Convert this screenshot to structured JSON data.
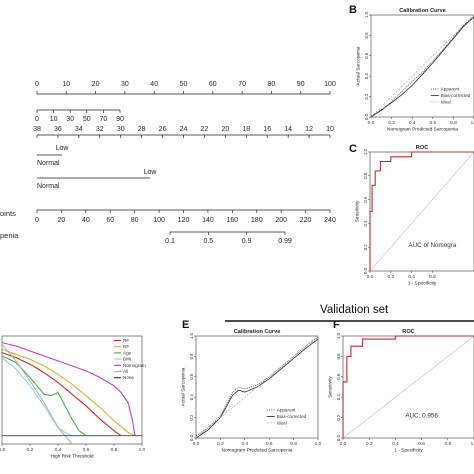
{
  "nomogram": {
    "points_ticks": [
      "0",
      "10",
      "20",
      "30",
      "40",
      "50",
      "60",
      "70",
      "80",
      "90",
      "100"
    ],
    "row2_ticks": [
      "0",
      "10",
      "30",
      "50",
      "70",
      "90"
    ],
    "row3_ticks": [
      "38",
      "36",
      "34",
      "32",
      "30",
      "28",
      "26",
      "24",
      "22",
      "20",
      "18",
      "16",
      "14",
      "12",
      "10"
    ],
    "row4_labels": [
      "Low",
      "Normal"
    ],
    "row5_labels": [
      "Low",
      "Normal"
    ],
    "total_points_label": "oints",
    "total_ticks": [
      "0",
      "20",
      "40",
      "60",
      "80",
      "100",
      "120",
      "140",
      "160",
      "180",
      "200",
      "220",
      "240"
    ],
    "risk_label": "penia",
    "risk_ticks": [
      "0.1",
      "0.5",
      "0.9",
      "0.99"
    ]
  },
  "panels": {
    "B": "B",
    "C": "C",
    "E": "E",
    "F": "F",
    "validation_title": "Validation set"
  },
  "chart_data": [
    {
      "id": "B",
      "type": "line",
      "title": "Calibration Curve",
      "xlabel": "Nomogram Predicted Sarcopenia",
      "ylabel": "Actual Sarcopenia",
      "x_ticks": [
        "0.0",
        "0.2",
        "0.4",
        "0.6",
        "0.8",
        "1.0"
      ],
      "y_ticks": [
        "0.0",
        "0.2",
        "0.4",
        "0.6",
        "0.8",
        "1.0"
      ],
      "xlim": [
        0,
        1
      ],
      "ylim": [
        0,
        1
      ],
      "legend": [
        "Apparent",
        "Bias-corrected",
        "Ideal"
      ],
      "series": [
        {
          "name": "Apparent",
          "x": [
            0.0,
            0.1,
            0.2,
            0.3,
            0.4,
            0.5,
            0.6,
            0.7,
            0.8,
            0.9,
            1.0
          ],
          "y": [
            0.01,
            0.06,
            0.15,
            0.25,
            0.35,
            0.44,
            0.55,
            0.66,
            0.78,
            0.9,
            0.99
          ]
        },
        {
          "name": "Bias-corrected",
          "x": [
            0.0,
            0.1,
            0.2,
            0.3,
            0.4,
            0.5,
            0.6,
            0.7,
            0.8,
            0.9,
            1.0
          ],
          "y": [
            0.0,
            0.07,
            0.14,
            0.22,
            0.31,
            0.42,
            0.53,
            0.65,
            0.77,
            0.89,
            0.98
          ]
        },
        {
          "name": "Ideal",
          "x": [
            0,
            1
          ],
          "y": [
            0,
            1
          ]
        }
      ]
    },
    {
      "id": "C",
      "type": "line",
      "title": "ROC",
      "xlabel": "1 - Specificity",
      "ylabel": "Sensitivity",
      "x_ticks": [
        "0.0",
        "0.2",
        "0.4",
        "0.6"
      ],
      "y_ticks": [
        "0.0",
        "0.2",
        "0.4",
        "0.6",
        "0.8",
        "1.0"
      ],
      "xlim": [
        0,
        1
      ],
      "ylim": [
        0,
        1
      ],
      "annotation": "AUC of Nomogra",
      "series": [
        {
          "name": "ROC",
          "x": [
            0,
            0,
            0.02,
            0.02,
            0.05,
            0.05,
            0.1,
            0.1,
            0.2,
            0.2,
            0.4,
            0.4,
            1.0
          ],
          "y": [
            0,
            0.5,
            0.5,
            0.72,
            0.72,
            0.84,
            0.84,
            0.92,
            0.92,
            0.96,
            0.96,
            1.0,
            1.0
          ]
        }
      ]
    },
    {
      "id": "D",
      "type": "line",
      "xlabel": "High Risk Threshold",
      "x_ticks": [
        "0.0",
        "0.2",
        "0.4",
        "0.6",
        "0.8",
        "1.0"
      ],
      "xlim": [
        0,
        1
      ],
      "ylim": [
        -0.05,
        0.6
      ],
      "legend": [
        "RF",
        "RF",
        "Age",
        "BMI",
        "Nomogram",
        "All",
        "None"
      ],
      "series": [
        {
          "name": "RF",
          "color": "#b5302a",
          "x": [
            0,
            0.1,
            0.2,
            0.3,
            0.4,
            0.5,
            0.6,
            0.7,
            0.8,
            0.85
          ],
          "y": [
            0.5,
            0.47,
            0.43,
            0.38,
            0.32,
            0.25,
            0.18,
            0.1,
            0.03,
            0.0
          ]
        },
        {
          "name": "RF",
          "color": "#d4b53a",
          "x": [
            0,
            0.1,
            0.2,
            0.3,
            0.4,
            0.5,
            0.6,
            0.7,
            0.8,
            0.9,
            0.95
          ],
          "y": [
            0.52,
            0.49,
            0.46,
            0.42,
            0.37,
            0.31,
            0.24,
            0.17,
            0.09,
            0.02,
            0.0
          ]
        },
        {
          "name": "Age",
          "color": "#4caf50",
          "x": [
            0,
            0.1,
            0.2,
            0.3,
            0.35,
            0.4,
            0.5,
            0.55,
            0.6
          ],
          "y": [
            0.48,
            0.44,
            0.35,
            0.25,
            0.24,
            0.26,
            0.1,
            0.03,
            0.0
          ]
        },
        {
          "name": "BMI",
          "color": "#9ad0ec",
          "x": [
            0,
            0.1,
            0.2,
            0.3,
            0.4,
            0.45,
            0.5
          ],
          "y": [
            0.47,
            0.4,
            0.3,
            0.18,
            0.05,
            0.02,
            0.0
          ]
        },
        {
          "name": "Nomogram",
          "color": "#c040c0",
          "x": [
            0,
            0.1,
            0.2,
            0.3,
            0.4,
            0.5,
            0.6,
            0.7,
            0.8,
            0.85,
            0.9,
            0.93,
            0.95
          ],
          "y": [
            0.56,
            0.54,
            0.51,
            0.48,
            0.45,
            0.42,
            0.39,
            0.35,
            0.3,
            0.26,
            0.2,
            0.1,
            0.0
          ]
        },
        {
          "name": "All",
          "color": "#b0b0b0",
          "x": [
            0,
            0.1,
            0.2,
            0.3,
            0.4,
            0.5
          ],
          "y": [
            0.55,
            0.45,
            0.33,
            0.2,
            0.05,
            -0.05
          ]
        },
        {
          "name": "None",
          "color": "#404040",
          "x": [
            0,
            1
          ],
          "y": [
            0,
            0
          ]
        }
      ]
    },
    {
      "id": "E",
      "type": "line",
      "title": "Calibration Curve",
      "xlabel": "Nomogram Predicted Sarcopenia",
      "ylabel": "Actual Sarcopenia",
      "x_ticks": [
        "0.0",
        "0.2",
        "0.4",
        "0.6",
        "0.8",
        "1.0"
      ],
      "y_ticks": [
        "0.0",
        "0.2",
        "0.4",
        "0.6",
        "0.8",
        "1.0"
      ],
      "xlim": [
        0,
        1
      ],
      "ylim": [
        0,
        1
      ],
      "legend": [
        "Apparent",
        "Bias-corrected",
        "Ideal"
      ],
      "series": [
        {
          "name": "Apparent",
          "x": [
            0.0,
            0.1,
            0.2,
            0.3,
            0.35,
            0.4,
            0.5,
            0.6,
            0.7,
            0.8,
            0.9,
            1.0
          ],
          "y": [
            0.02,
            0.1,
            0.22,
            0.45,
            0.5,
            0.48,
            0.52,
            0.6,
            0.7,
            0.8,
            0.9,
            0.99
          ]
        },
        {
          "name": "Bias-corrected",
          "x": [
            0.0,
            0.1,
            0.2,
            0.3,
            0.35,
            0.4,
            0.5,
            0.6,
            0.7,
            0.8,
            0.9,
            1.0
          ],
          "y": [
            0.0,
            0.08,
            0.2,
            0.42,
            0.47,
            0.45,
            0.5,
            0.58,
            0.68,
            0.78,
            0.88,
            0.97
          ]
        },
        {
          "name": "Ideal",
          "x": [
            0,
            1
          ],
          "y": [
            0,
            1
          ]
        }
      ]
    },
    {
      "id": "F",
      "type": "line",
      "title": "ROC",
      "xlabel": "1 - Specificity",
      "ylabel": "Sensitivity",
      "x_ticks": [
        "0.0",
        "0.2",
        "0.4",
        "0.6",
        "0.8",
        "1.0"
      ],
      "y_ticks": [
        "0.0",
        "0.2",
        "0.4",
        "0.6",
        "0.8",
        "1.0"
      ],
      "xlim": [
        0,
        1
      ],
      "ylim": [
        0,
        1
      ],
      "annotation": "AUC:  0.956",
      "series": [
        {
          "name": "ROC",
          "x": [
            0,
            0,
            0.03,
            0.03,
            0.06,
            0.06,
            0.15,
            0.15,
            0.4,
            0.4,
            1.0
          ],
          "y": [
            0,
            0.55,
            0.55,
            0.8,
            0.8,
            0.9,
            0.9,
            0.97,
            0.97,
            1.0,
            1.0
          ]
        }
      ]
    }
  ]
}
